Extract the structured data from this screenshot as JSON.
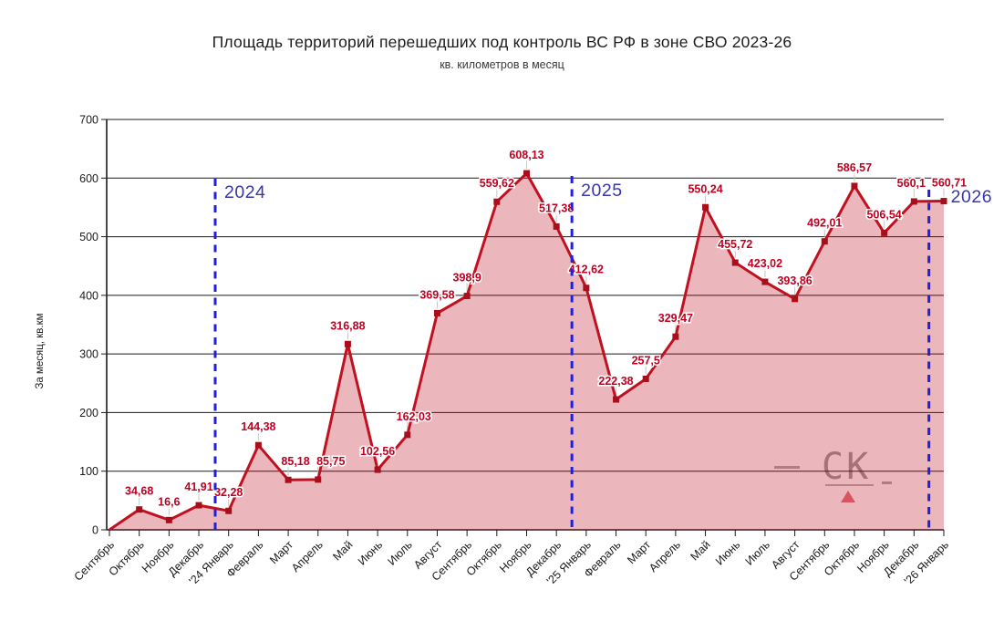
{
  "chart_data": {
    "type": "area",
    "title": "Площадь территорий перешедших под контроль ВС РФ в зоне СВО 2023-26",
    "subtitle": "кв. километров в месяц",
    "ylabel": "За месяц, кв.км",
    "ylim": [
      0,
      700
    ],
    "ytick_step": 100,
    "grid": "horizontal",
    "legend": "none",
    "categories": [
      "Сентябрь",
      "Октябрь",
      "Ноябрь",
      "Декабрь",
      "'24 Январь",
      "Февраль",
      "Март",
      "Апрель",
      "Май",
      "Июнь",
      "Июль",
      "Август",
      "Сентябрь",
      "Октябрь",
      "Ноябрь",
      "Декабрь",
      "'25 Январь",
      "Февраль",
      "Март",
      "Апрель",
      "Май",
      "Июнь",
      "Июль",
      "Август",
      "Сентябрь",
      "Октябрь",
      "Ноябрь",
      "Декабрь",
      "'26 Январь"
    ],
    "values": [
      0,
      34.68,
      16.6,
      41.91,
      32.28,
      144.38,
      85.18,
      85.75,
      316.88,
      102.56,
      162.03,
      369.58,
      398.9,
      559.62,
      608.13,
      517.38,
      412.62,
      222.38,
      257.5,
      329.47,
      550.24,
      455.72,
      423.02,
      393.86,
      492.01,
      586.57,
      506.54,
      560.1,
      560.71
    ],
    "point_labels": [
      "",
      "34,68",
      "16,6",
      "41,91",
      "32,28",
      "144,38",
      "85,18",
      "85,75",
      "316,88",
      "102,56",
      "162,03",
      "369,58",
      "398,9",
      "559,62",
      "608,13",
      "517,38",
      "412,62",
      "222,38",
      "257,5",
      "329,47",
      "550,24",
      "455,72",
      "423,02",
      "393,86",
      "492,01",
      "586,57",
      "506,54",
      "560,1",
      "560,71"
    ],
    "label_dx": {
      "6": 8,
      "7": 14,
      "10": 7,
      "27": -3,
      "28": 6
    },
    "year_markers": [
      {
        "label": "2024",
        "at_index": 3.55,
        "top": 196,
        "text_dx": 10,
        "text_dy": 21
      },
      {
        "label": "2025",
        "at_index": 15.52,
        "top": 193,
        "text_dx": 10,
        "text_dy": 22
      },
      {
        "label": "2026",
        "at_index": 27.5,
        "top": 208,
        "text_dx": 24,
        "text_dy": 14
      }
    ],
    "colors": {
      "line": "#bf1120",
      "marker": "#a90e1a",
      "fill": "#bf1120",
      "fill_opacity": 0.3,
      "label_text": "#c00021",
      "year_line": "#2020d8",
      "year_text": "#3636ae",
      "axis": "#1b1b1b",
      "leader": "#c6c6c6"
    }
  },
  "watermark": {
    "text": "СК"
  }
}
